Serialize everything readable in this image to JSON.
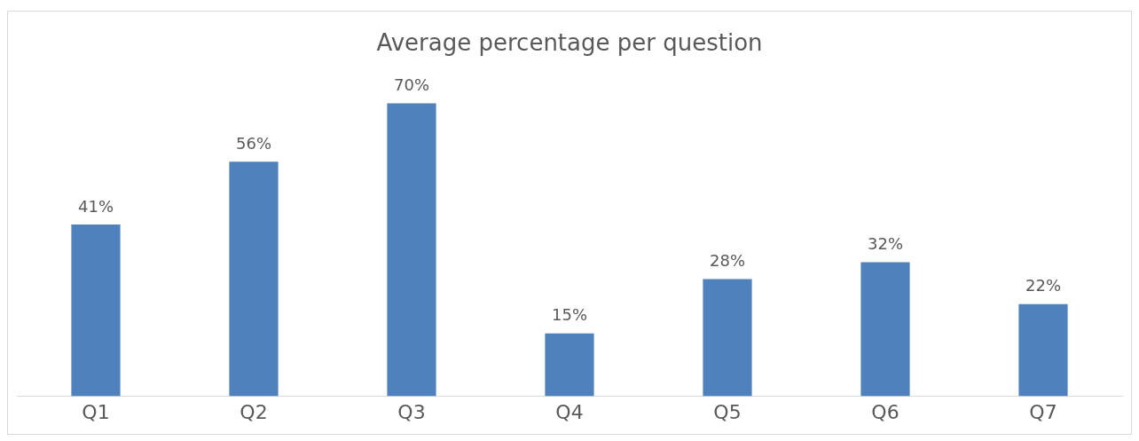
{
  "chart_data": {
    "type": "bar",
    "title": "Average percentage per question",
    "categories": [
      "Q1",
      "Q2",
      "Q3",
      "Q4",
      "Q5",
      "Q6",
      "Q7"
    ],
    "values": [
      41,
      56,
      70,
      15,
      28,
      32,
      22
    ],
    "value_labels": [
      "41%",
      "56%",
      "70%",
      "15%",
      "28%",
      "32%",
      "22%"
    ],
    "color": "#4f81bd",
    "grid": false,
    "legend": false
  }
}
